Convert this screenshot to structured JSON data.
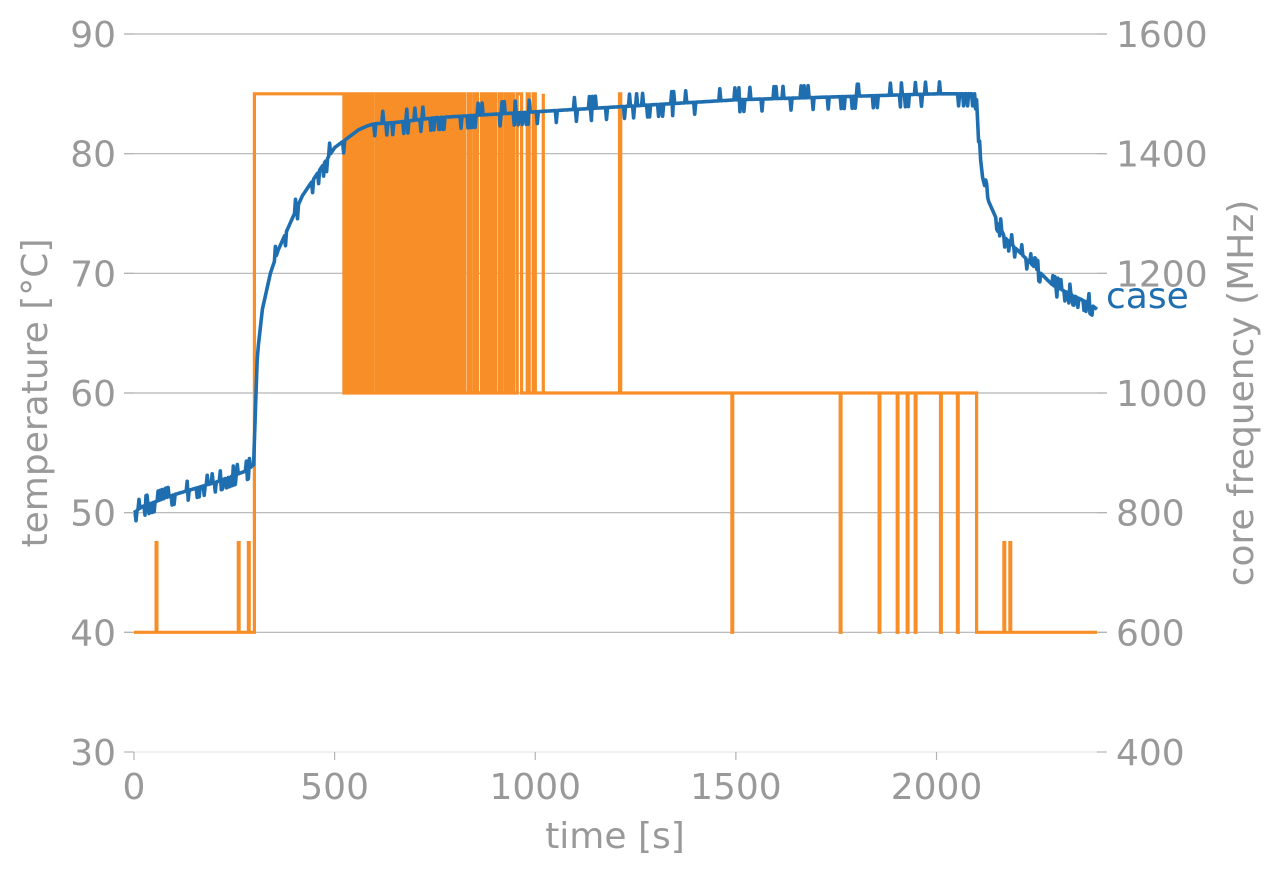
{
  "chart_data": {
    "type": "line",
    "xlabel": "time [s]",
    "ylabel_left": "temperature [°C]",
    "ylabel_right": "core frequency (MHz)",
    "xlim": [
      0,
      2400
    ],
    "ylim_left": [
      30,
      90
    ],
    "ylim_right": [
      400,
      1600
    ],
    "x_ticks": [
      "0",
      "500",
      "1000",
      "1500",
      "2000"
    ],
    "x_tick_values": [
      0,
      500,
      1000,
      1500,
      2000
    ],
    "y_left_ticks": [
      "30",
      "40",
      "50",
      "60",
      "70",
      "80",
      "90"
    ],
    "y_left_tick_values": [
      30,
      40,
      50,
      60,
      70,
      80,
      90
    ],
    "y_right_ticks": [
      "400",
      "600",
      "800",
      "1000",
      "1200",
      "1400",
      "1600"
    ],
    "y_right_tick_values": [
      400,
      600,
      800,
      1000,
      1200,
      1400,
      1600
    ],
    "grid": "horizontal",
    "colors": {
      "temperature": "#1f6fb0",
      "frequency": "#f88e27",
      "text": "#999999",
      "grid": "#b3b3b3"
    },
    "series": [
      {
        "name": "case",
        "axis": "left",
        "color": "#1f6fb0",
        "x": [
          0,
          20,
          60,
          100,
          150,
          200,
          240,
          280,
          298,
          304,
          310,
          320,
          340,
          360,
          380,
          400,
          420,
          440,
          460,
          480,
          500,
          520,
          540,
          560,
          580,
          600,
          650,
          700,
          750,
          800,
          850,
          900,
          950,
          1000,
          1100,
          1200,
          1300,
          1400,
          1500,
          1600,
          1700,
          1800,
          1900,
          2000,
          2050,
          2095,
          2100,
          2105,
          2115,
          2130,
          2150,
          2170,
          2200,
          2230,
          2260,
          2290,
          2320,
          2350,
          2380,
          2400
        ],
        "y": [
          50,
          50.5,
          51,
          51.5,
          52,
          52.5,
          53,
          53.5,
          54,
          60,
          64,
          67,
          70,
          72,
          73.5,
          75,
          76.5,
          77.5,
          78.5,
          79.5,
          80.5,
          81,
          81.5,
          82,
          82.3,
          82.5,
          82.6,
          82.8,
          83,
          83.1,
          83.2,
          83.3,
          83.4,
          83.5,
          83.7,
          83.9,
          84.1,
          84.3,
          84.5,
          84.6,
          84.7,
          84.8,
          84.9,
          85,
          85,
          85,
          84.5,
          81,
          78,
          76,
          74.5,
          73,
          72,
          71,
          70,
          69,
          68.5,
          68,
          67.5,
          67
        ]
      },
      {
        "name": "",
        "axis": "right",
        "color": "#f88e27",
        "base_mhz": 600,
        "spike_mhz": 750,
        "high_mhz": 1500,
        "mid_mhz": 1000,
        "low_spikes_s": [
          55,
          260,
          285,
          2168,
          2183
        ],
        "high_plateau_s": [
          300,
          523
        ],
        "oscillation_s": [
          523,
          1020
        ],
        "mid_plateau_s": [
          1020,
          2100
        ],
        "mid_high_spike_s": 1210,
        "mid_drops_s": [
          1490,
          1760,
          1857,
          1902,
          1927,
          1947,
          2010,
          2052
        ],
        "drop_to_base_s": 2100
      }
    ]
  }
}
